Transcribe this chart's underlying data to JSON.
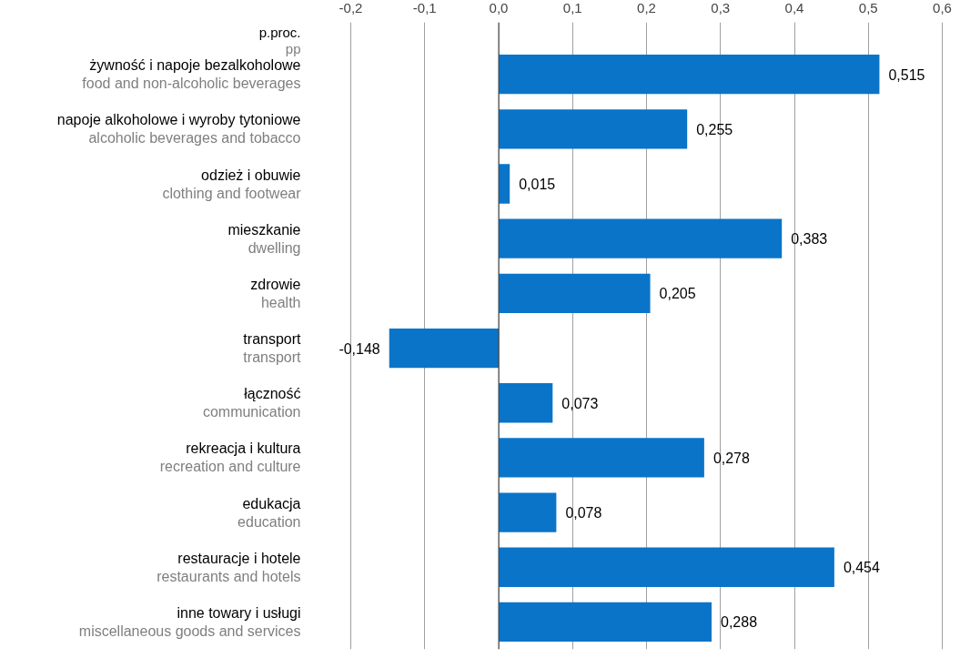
{
  "chart_data": {
    "type": "bar",
    "orientation": "horizontal",
    "xlabel": "p.proc.\npp",
    "categories": [
      "żywność i napoje bezalkoholowe\nfood and non-alcoholic beverages",
      "napoje alkoholowe i wyroby tytoniowe\nalcoholic beverages and tobacco",
      "odzież i obuwie\nclothing and footwear",
      "mieszkanie\ndwelling",
      "zdrowie\nhealth",
      "transport\ntransport",
      "łączność\ncommunication",
      "rekreacja i kultura\nrecreation and culture",
      "edukacja\neducation",
      "restauracje i hotele\nrestaurants and hotels",
      "inne towary i usługi\nmiscellaneous goods and services"
    ],
    "values": [
      0.515,
      0.255,
      0.015,
      0.383,
      0.205,
      -0.148,
      0.073,
      0.278,
      0.078,
      0.454,
      0.288
    ],
    "value_labels": [
      "0,515",
      "0,255",
      "0,015",
      "0,383",
      "0,205",
      "-0,148",
      "0,073",
      "0,278",
      "0,078",
      "0,454",
      "0,288"
    ],
    "color": "#0a74c9",
    "xlim": [
      -0.2,
      0.6
    ],
    "xticks": [
      {
        "value": -0.2,
        "label": "-0,2"
      },
      {
        "value": -0.1,
        "label": "-0,1"
      },
      {
        "value": 0,
        "label": "0,0"
      },
      {
        "value": 0.1,
        "label": "0,1"
      },
      {
        "value": 0.2,
        "label": "0,2"
      },
      {
        "value": 0.3,
        "label": "0,3"
      },
      {
        "value": 0.4,
        "label": "0,4"
      },
      {
        "value": 0.5,
        "label": "0,5"
      },
      {
        "value": 0.6,
        "label": "0,6"
      }
    ],
    "grid": "x"
  }
}
